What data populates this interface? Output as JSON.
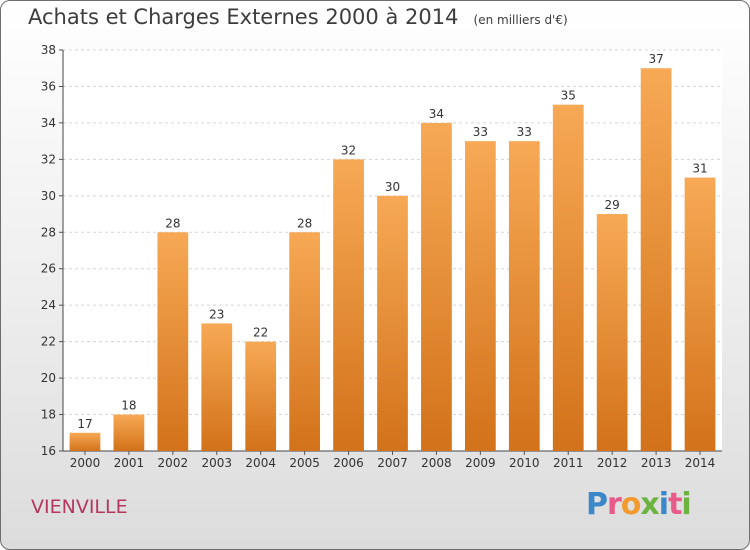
{
  "chart_data": {
    "type": "bar",
    "title": "Achats et Charges Externes 2000 à 2014",
    "subtitle": "(en milliers d'€)",
    "categories": [
      "2000",
      "2001",
      "2002",
      "2003",
      "2004",
      "2005",
      "2006",
      "2007",
      "2008",
      "2009",
      "2010",
      "2011",
      "2012",
      "2013",
      "2014"
    ],
    "values": [
      17,
      18,
      28,
      23,
      22,
      28,
      32,
      30,
      34,
      33,
      33,
      35,
      29,
      37,
      31
    ],
    "xlabel": "",
    "ylabel": "",
    "ylim": [
      16,
      38
    ],
    "yticks": [
      16,
      18,
      20,
      22,
      24,
      26,
      28,
      30,
      32,
      34,
      36,
      38
    ],
    "grid": true,
    "bar_color_top": "#f7a955",
    "bar_color_bottom": "#d2721a"
  },
  "footer": {
    "commune": "VIENVILLE",
    "brand": "Proxiti"
  }
}
